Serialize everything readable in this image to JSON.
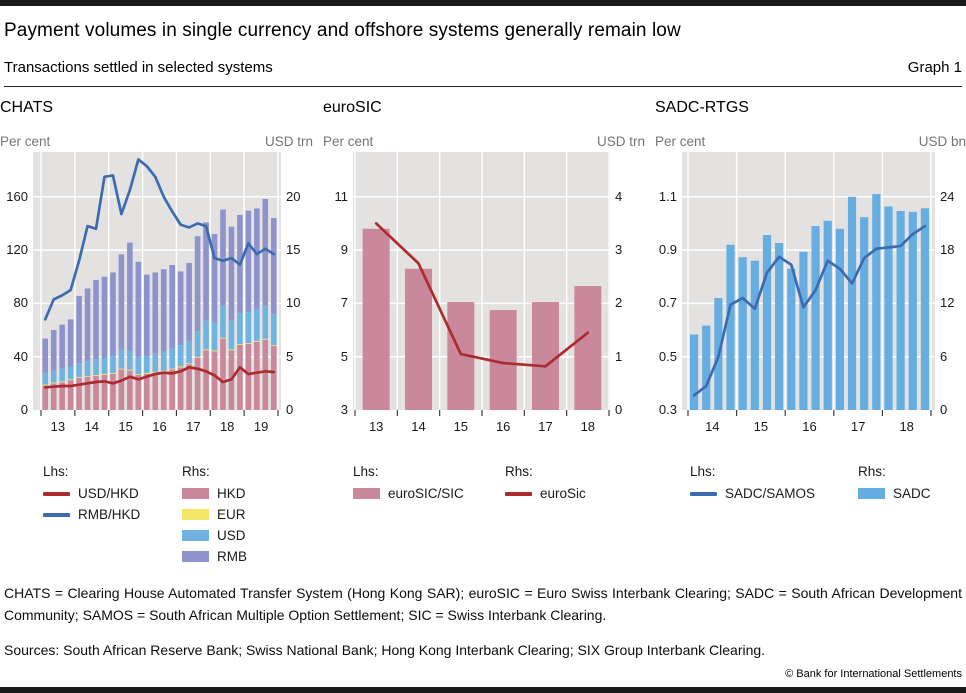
{
  "header": {
    "title": "Payment volumes in single currency and offshore systems generally remain low",
    "subtitle": "Transactions settled in selected systems",
    "graph_label": "Graph 1"
  },
  "footnotes": {
    "definitions": "CHATS = Clearing House Automated Transfer System (Hong Kong SAR); euroSIC = Euro Swiss Interbank Clearing; SADC = South African Development Community; SAMOS = South African Multiple Option Settlement; SIC = Swiss Interbank Clearing.",
    "sources": "Sources: South African Reserve Bank; Swiss National Bank; Hong Kong Interbank Clearing; SIX Group Interbank Clearing.",
    "copyright": "© Bank for International Settlements"
  },
  "colors": {
    "plot_bg": "#e3e2e1",
    "grid": "#ffffff",
    "red_line": "#ad2a2e",
    "blue_line": "#3c6bb2",
    "hkd_bar": "#c9889c",
    "eur_bar": "#f4e468",
    "usd_bar": "#6fb4e0",
    "rmb_bar": "#8e93cb",
    "sadc_bar": "#66ade2",
    "tick": "#3d3d3d"
  },
  "chart_data": [
    {
      "type": "bar+line",
      "title": "CHATS",
      "ylabel_left": "Per cent",
      "ylabel_right": "USD trn",
      "ylim_left": [
        0,
        193.6
      ],
      "ylim_right": [
        0,
        24.2
      ],
      "left_ticks": [
        0,
        40,
        80,
        120,
        160
      ],
      "right_ticks": [
        0,
        5,
        10,
        15,
        20
      ],
      "x_labels": [
        "13",
        "14",
        "15",
        "16",
        "17",
        "18",
        "19"
      ],
      "categories": [
        "2013 Q1",
        "2013 Q2",
        "2013 Q3",
        "2013 Q4",
        "2014 Q1",
        "2014 Q2",
        "2014 Q3",
        "2014 Q4",
        "2015 Q1",
        "2015 Q2",
        "2015 Q3",
        "2015 Q4",
        "2016 Q1",
        "2016 Q2",
        "2016 Q3",
        "2016 Q4",
        "2017 Q1",
        "2017 Q2",
        "2017 Q3",
        "2017 Q4",
        "2018 Q1",
        "2018 Q2",
        "2018 Q3",
        "2018 Q4",
        "2019 Q1",
        "2019 Q2",
        "2019 Q3",
        "2019 Q4"
      ],
      "bar_series": [
        {
          "name": "HKD",
          "axis": "right",
          "color_key": "hkd_bar",
          "values": [
            2.3,
            2.5,
            2.6,
            2.8,
            3.0,
            3.1,
            3.2,
            3.3,
            3.4,
            3.8,
            3.7,
            3.3,
            3.4,
            3.5,
            3.6,
            3.8,
            4.0,
            4.3,
            4.9,
            5.6,
            5.5,
            6.7,
            5.6,
            6.1,
            6.2,
            6.4,
            6.6,
            6.0
          ]
        },
        {
          "name": "EUR",
          "axis": "right",
          "color_key": "eur_bar",
          "values": [
            0.08,
            0.08,
            0.08,
            0.08,
            0.08,
            0.08,
            0.08,
            0.08,
            0.08,
            0.08,
            0.08,
            0.08,
            0.08,
            0.08,
            0.08,
            0.08,
            0.08,
            0.08,
            0.08,
            0.08,
            0.08,
            0.08,
            0.08,
            0.08,
            0.08,
            0.08,
            0.08,
            0.08
          ]
        },
        {
          "name": "USD",
          "axis": "right",
          "color_key": "usd_bar",
          "values": [
            1.1,
            1.1,
            1.2,
            1.2,
            1.3,
            1.4,
            1.5,
            1.5,
            1.6,
            1.8,
            1.8,
            1.6,
            1.6,
            1.7,
            1.8,
            1.9,
            2.0,
            2.1,
            2.4,
            2.7,
            2.6,
            3.0,
            2.7,
            2.9,
            2.9,
            3.0,
            3.1,
            2.9
          ]
        },
        {
          "name": "RMB",
          "axis": "right",
          "color_key": "rmb_bar",
          "values": [
            3.22,
            3.82,
            4.12,
            4.42,
            6.32,
            6.82,
            7.42,
            7.62,
            7.82,
            8.92,
            10.12,
            8.92,
            7.62,
            7.62,
            7.72,
            7.82,
            6.92,
            7.32,
            8.92,
            9.22,
            8.32,
            9.02,
            8.82,
            9.22,
            9.52,
            9.42,
            10.02,
            9.02
          ]
        }
      ],
      "line_series": [
        {
          "name": "USD/HKD",
          "axis": "left",
          "color_key": "red_line",
          "values": [
            17,
            17.5,
            18,
            18,
            19,
            20,
            21,
            21.5,
            20,
            22,
            25,
            23,
            25,
            27,
            28,
            27.5,
            29,
            32,
            31,
            29,
            26,
            21,
            23,
            32,
            27,
            28,
            29,
            28.5
          ]
        },
        {
          "name": "RMB/HKD",
          "axis": "left",
          "color_key": "blue_line",
          "values": [
            68,
            83,
            86,
            90,
            112,
            138,
            136,
            175,
            176,
            147,
            165,
            188,
            183,
            175,
            160,
            149,
            139,
            137,
            140,
            138,
            114,
            112,
            114,
            109,
            125,
            117,
            121,
            117
          ]
        }
      ],
      "legend": {
        "lhs_label": "Lhs:",
        "rhs_label": "Rhs:",
        "lhs_items": [
          {
            "type": "line",
            "color_key": "red_line",
            "label": "USD/HKD"
          },
          {
            "type": "line",
            "color_key": "blue_line",
            "label": "RMB/HKD"
          }
        ],
        "rhs_items": [
          {
            "type": "bar",
            "color_key": "hkd_bar",
            "label": "HKD"
          },
          {
            "type": "bar",
            "color_key": "eur_bar",
            "label": "EUR"
          },
          {
            "type": "bar",
            "color_key": "usd_bar",
            "label": "USD"
          },
          {
            "type": "bar",
            "color_key": "rmb_bar",
            "label": "RMB"
          }
        ]
      }
    },
    {
      "type": "bar+line",
      "title": "euroSIC",
      "ylabel_left": "Per cent",
      "ylabel_right": "USD trn",
      "ylim_left": [
        3,
        12.68
      ],
      "ylim_right": [
        0,
        4.84
      ],
      "left_ticks": [
        3,
        5,
        7,
        9,
        11
      ],
      "right_ticks": [
        0,
        1,
        2,
        3,
        4
      ],
      "x_labels": [
        "13",
        "14",
        "15",
        "16",
        "17",
        "18"
      ],
      "categories": [
        "2013",
        "2014",
        "2015",
        "2016",
        "2017",
        "2018"
      ],
      "bar_series": [
        {
          "name": "euroSIC/SIC",
          "axis": "left",
          "color_key": "hkd_bar",
          "values": [
            9.8,
            8.3,
            7.05,
            6.75,
            7.05,
            7.65
          ]
        }
      ],
      "line_series": [
        {
          "name": "euroSic",
          "axis": "right",
          "color_key": "red_line",
          "values": [
            3.5,
            2.75,
            1.05,
            0.88,
            0.82,
            1.45
          ]
        }
      ],
      "legend": {
        "lhs_label": "Lhs:",
        "rhs_label": "Rhs:",
        "lhs_items": [
          {
            "type": "bar",
            "color_key": "hkd_bar",
            "label": "euroSIC/SIC"
          }
        ],
        "rhs_items": [
          {
            "type": "line",
            "color_key": "red_line",
            "label": "euroSic"
          }
        ]
      }
    },
    {
      "type": "bar+line",
      "title": "SADC-RTGS",
      "ylabel_left": "Per cent",
      "ylabel_right": "USD bn",
      "ylim_left": [
        0.3,
        1.268
      ],
      "ylim_right": [
        0,
        29.04
      ],
      "left_ticks": [
        0.3,
        0.5,
        0.7,
        0.9,
        1.1
      ],
      "right_ticks": [
        0,
        6,
        12,
        18,
        24
      ],
      "x_labels": [
        "14",
        "15",
        "16",
        "17",
        "18"
      ],
      "categories": [
        "2014 Q1",
        "2014 Q2",
        "2014 Q3",
        "2014 Q4",
        "2015 Q1",
        "2015 Q2",
        "2015 Q3",
        "2015 Q4",
        "2016 Q1",
        "2016 Q2",
        "2016 Q3",
        "2016 Q4",
        "2017 Q1",
        "2017 Q2",
        "2017 Q3",
        "2017 Q4",
        "2018 Q1",
        "2018 Q2",
        "2018 Q3",
        "2018 Q4"
      ],
      "bar_series": [
        {
          "name": "SADC",
          "axis": "right",
          "color_key": "sadc_bar",
          "values": [
            8.5,
            9.5,
            12.6,
            18.6,
            17.2,
            16.8,
            19.7,
            18.8,
            15.9,
            17.8,
            20.7,
            21.3,
            20.4,
            24.0,
            21.7,
            24.3,
            22.9,
            22.4,
            22.3,
            22.7
          ]
        }
      ],
      "line_series": [
        {
          "name": "SADC/SAMOS",
          "axis": "left",
          "color_key": "blue_line",
          "values": [
            0.355,
            0.39,
            0.5,
            0.695,
            0.72,
            0.68,
            0.815,
            0.875,
            0.845,
            0.685,
            0.75,
            0.86,
            0.83,
            0.775,
            0.87,
            0.905,
            0.91,
            0.915,
            0.96,
            0.99
          ]
        }
      ],
      "legend": {
        "lhs_label": "Lhs:",
        "rhs_label": "Rhs:",
        "lhs_items": [
          {
            "type": "line",
            "color_key": "blue_line",
            "label": "SADC/SAMOS"
          }
        ],
        "rhs_items": [
          {
            "type": "bar",
            "color_key": "sadc_bar",
            "label": "SADC"
          }
        ]
      }
    }
  ]
}
